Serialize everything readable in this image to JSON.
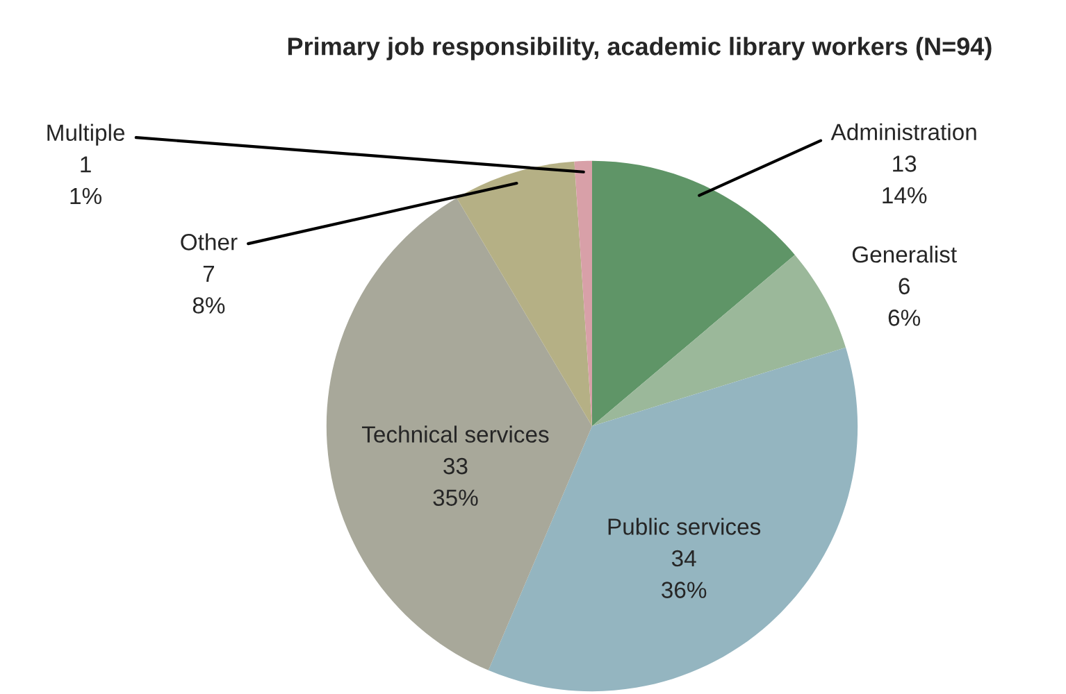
{
  "chart_data": {
    "type": "pie",
    "title": "Primary job responsibility, academic library workers (N=94)",
    "categories": [
      "Administration",
      "Generalist",
      "Public services",
      "Technical services",
      "Other",
      "Multiple"
    ],
    "values": [
      13,
      6,
      34,
      33,
      7,
      1
    ],
    "value_labels": [
      "13\n14%",
      "6\n6%",
      "34\n36%",
      "33\n35%",
      "7\n8%",
      "1\n1%"
    ],
    "colors": [
      "#5f9567",
      "#9bb89a",
      "#94b5c0",
      "#a8a89a",
      "#b5b085",
      "#d8a0a8"
    ]
  }
}
